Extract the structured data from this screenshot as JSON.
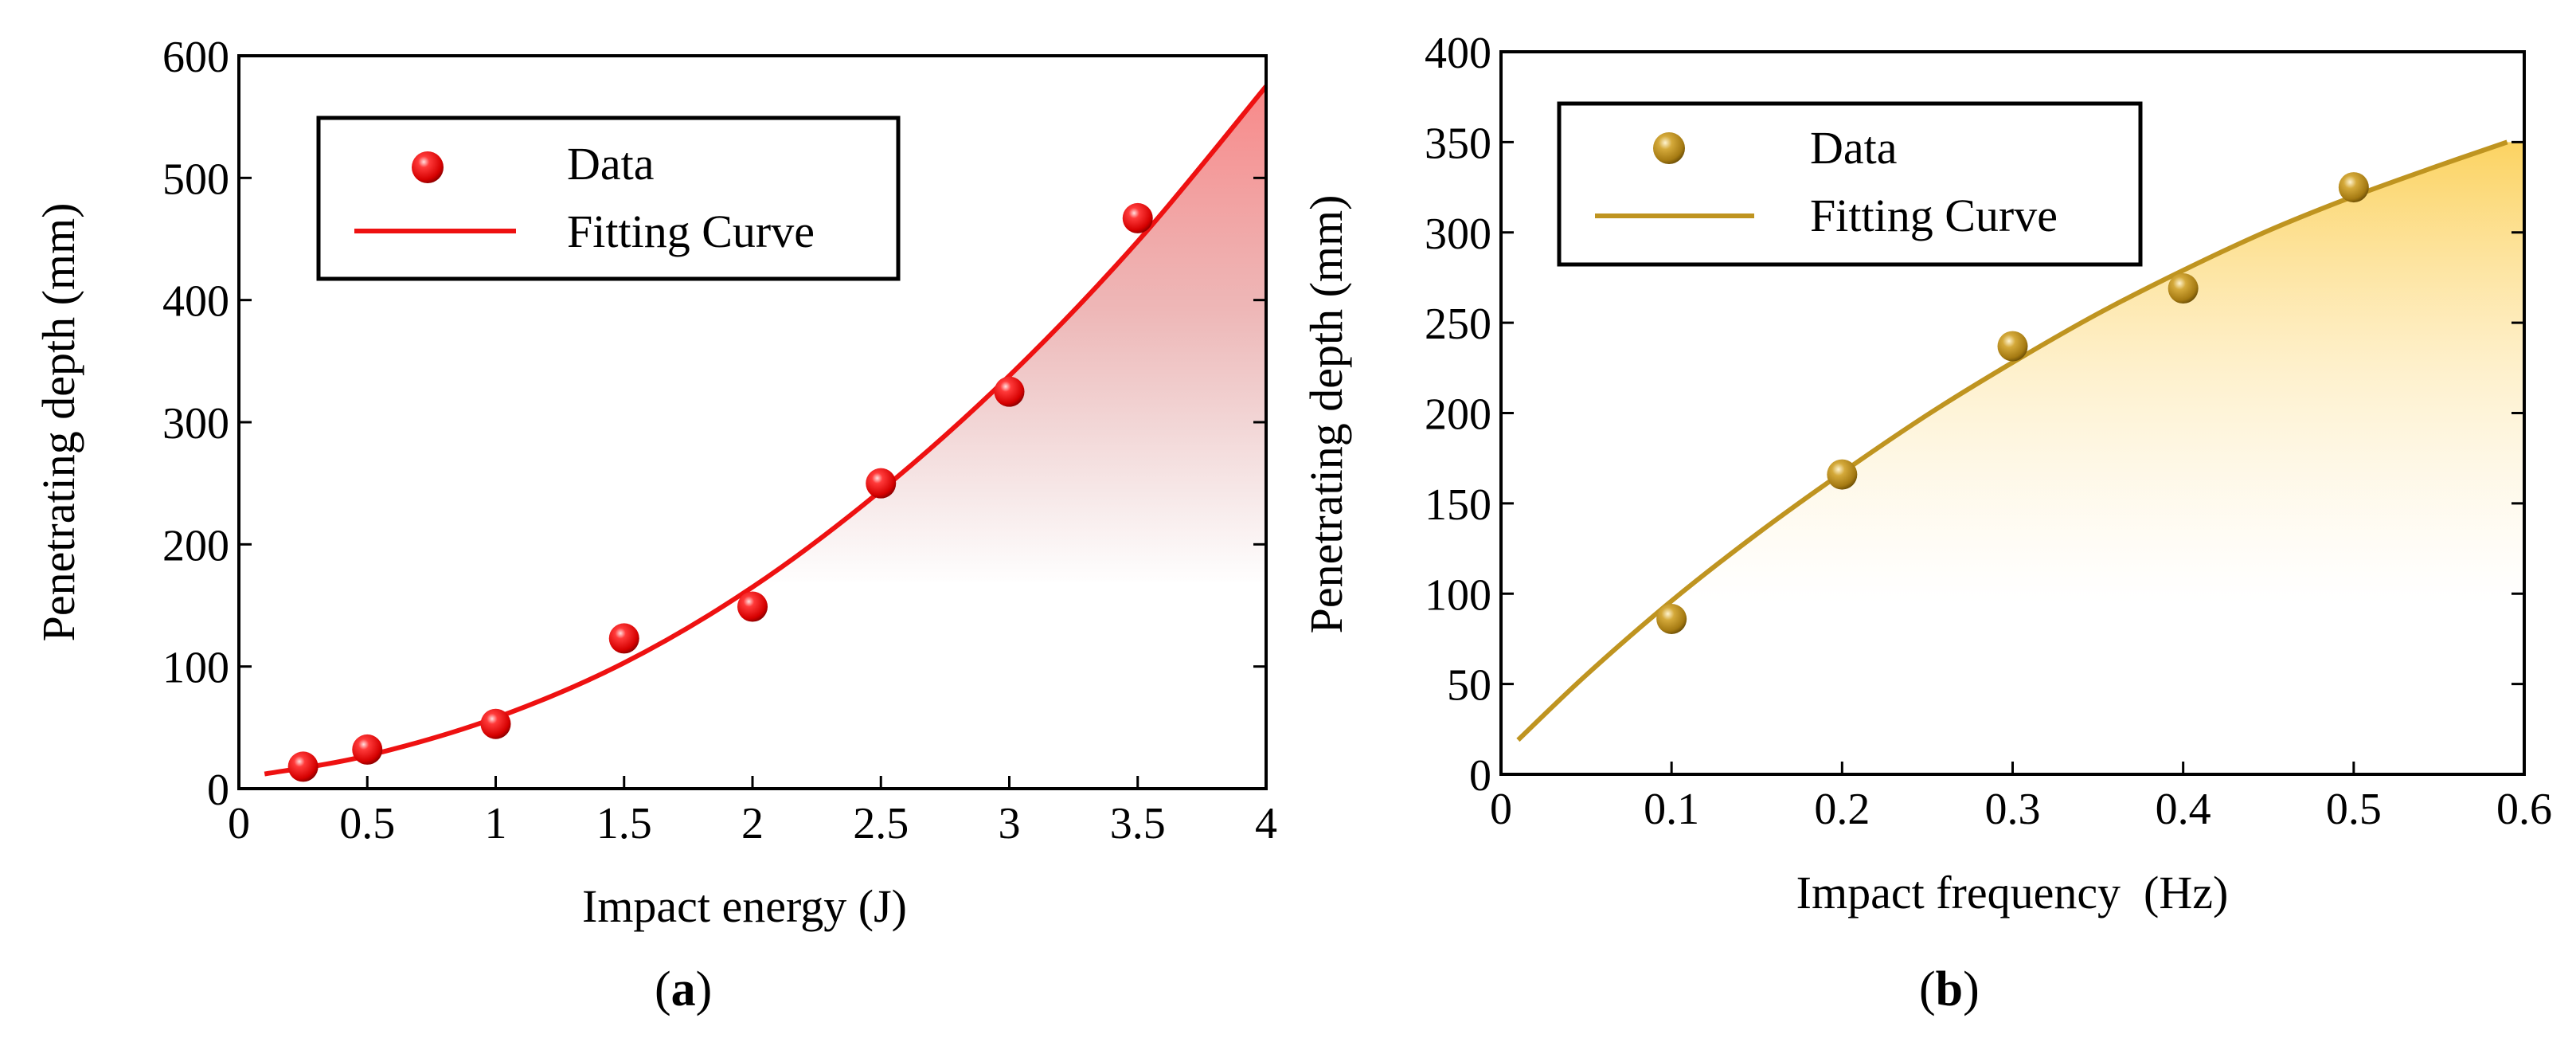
{
  "chart_data": [
    {
      "type": "scatter",
      "panel_label": "a",
      "xlabel": "Impact energy (J)",
      "ylabel": "Penetrating depth (mm)",
      "xlim": [
        0,
        4
      ],
      "ylim": [
        0,
        600
      ],
      "xticks": [
        0,
        0.5,
        1,
        1.5,
        2,
        2.5,
        3,
        3.5,
        4
      ],
      "xtick_labels": [
        "0",
        "0.5",
        "1",
        "1.5",
        "2",
        "2.5",
        "3",
        "3.5",
        "4"
      ],
      "yticks": [
        0,
        100,
        200,
        300,
        400,
        500,
        600
      ],
      "ytick_labels": [
        "0",
        "100",
        "200",
        "300",
        "400",
        "500",
        "600"
      ],
      "legend_position": "top-left",
      "color": "#ee1111",
      "fill_color": "#ee2222",
      "series": [
        {
          "name": "Data",
          "kind": "points",
          "x": [
            0.25,
            0.5,
            1,
            1.5,
            2,
            2.5,
            3,
            3.5
          ],
          "y": [
            18,
            32,
            53,
            123,
            149,
            250,
            325,
            467
          ]
        },
        {
          "name": "Fitting Curve",
          "kind": "line",
          "x": [
            0.1,
            0.5,
            1,
            1.5,
            2,
            2.5,
            3,
            3.5,
            4
          ],
          "y": [
            12,
            27,
            58,
            103,
            165,
            244,
            338,
            448,
            575
          ]
        }
      ],
      "legend": {
        "data_label": "Data",
        "curve_label": "Fitting Curve"
      }
    },
    {
      "type": "scatter",
      "panel_label": "b",
      "xlabel": "Impact frequency  (Hz)",
      "ylabel": "Penetrating depth (mm)",
      "xlim": [
        0,
        0.6
      ],
      "ylim": [
        0,
        400
      ],
      "xticks": [
        0,
        0.1,
        0.2,
        0.3,
        0.4,
        0.5,
        0.6
      ],
      "xtick_labels": [
        "0",
        "0.1",
        "0.2",
        "0.3",
        "0.4",
        "0.5",
        "0.6"
      ],
      "yticks": [
        0,
        50,
        100,
        150,
        200,
        250,
        300,
        350,
        400
      ],
      "ytick_labels": [
        "0",
        "50",
        "100",
        "150",
        "200",
        "250",
        "300",
        "350",
        "400"
      ],
      "legend_position": "top-left",
      "color": "#bf9420",
      "fill_color": "#fbcb3a",
      "series": [
        {
          "name": "Data",
          "kind": "points",
          "x": [
            0.1,
            0.2,
            0.3,
            0.4,
            0.5
          ],
          "y": [
            86,
            166,
            237,
            269,
            325
          ]
        },
        {
          "name": "Fitting Curve",
          "kind": "line",
          "x": [
            0.01,
            0.05,
            0.1,
            0.15,
            0.2,
            0.25,
            0.3,
            0.35,
            0.4,
            0.45,
            0.5,
            0.55,
            0.59
          ],
          "y": [
            19,
            55,
            96,
            133,
            167,
            199,
            228,
            255,
            279,
            301,
            320,
            337,
            350
          ]
        }
      ],
      "legend": {
        "data_label": "Data",
        "curve_label": "Fitting Curve"
      }
    }
  ]
}
